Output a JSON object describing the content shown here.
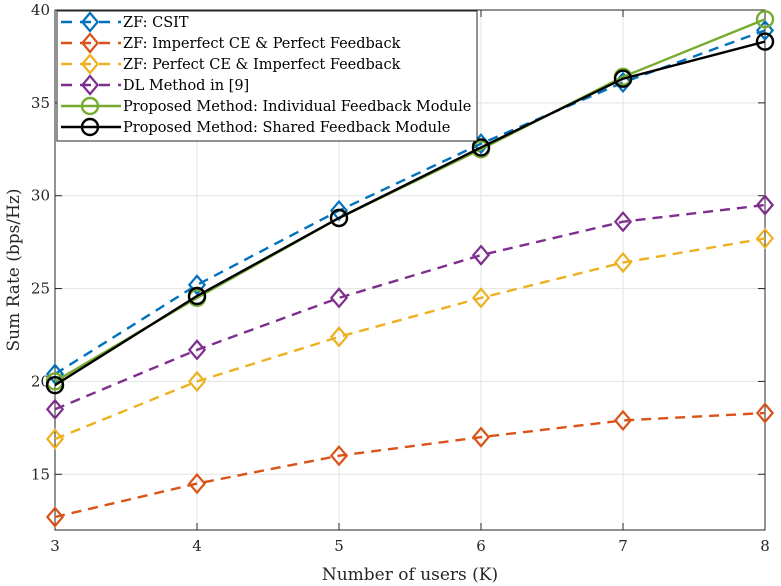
{
  "chart_data": {
    "type": "line",
    "title": "",
    "xlabel": "Number of users (K)",
    "ylabel": "Sum Rate (bps/Hz)",
    "x": [
      3,
      4,
      5,
      6,
      7,
      8
    ],
    "xlim": [
      3,
      8
    ],
    "ylim": [
      12,
      40
    ],
    "xticks": [
      3,
      4,
      5,
      6,
      7,
      8
    ],
    "yticks": [
      15,
      20,
      25,
      30,
      35,
      40
    ],
    "xtick_labels": [
      "3",
      "4",
      "5",
      "6",
      "7",
      "8"
    ],
    "ytick_labels": [
      "15",
      "20",
      "25",
      "30",
      "35",
      "40"
    ],
    "grid": true,
    "legend_position": "top-left",
    "series": [
      {
        "name": "ZF: CSIT",
        "color": "#0072BD",
        "line": "dashed",
        "marker": "diamond",
        "values": [
          20.4,
          25.2,
          29.2,
          32.8,
          36.1,
          38.9
        ]
      },
      {
        "name": "ZF: Imperfect CE & Perfect Feedback",
        "color": "#D95319",
        "line": "dashed",
        "marker": "diamond",
        "values": [
          12.7,
          14.5,
          16.0,
          17.0,
          17.9,
          18.3
        ]
      },
      {
        "name": "ZF: Perfect CE & Imperfect Feedback",
        "color": "#EDB120",
        "line": "dashed",
        "marker": "diamond",
        "values": [
          16.9,
          20.0,
          22.4,
          24.5,
          26.4,
          27.7
        ]
      },
      {
        "name": "DL Method in [9]",
        "color": "#7E2F8E",
        "line": "dashed",
        "marker": "diamond",
        "values": [
          18.5,
          21.7,
          24.5,
          26.8,
          28.6,
          29.5
        ]
      },
      {
        "name": "Proposed Method: Individual Feedback Module",
        "color": "#77AC30",
        "line": "solid",
        "marker": "circle",
        "values": [
          20.0,
          24.5,
          28.8,
          32.5,
          36.4,
          39.5
        ]
      },
      {
        "name": "Proposed Method: Shared Feedback Module",
        "color": "#000000",
        "line": "solid",
        "marker": "circle",
        "values": [
          19.8,
          24.6,
          28.8,
          32.6,
          36.3,
          38.3
        ]
      }
    ]
  }
}
